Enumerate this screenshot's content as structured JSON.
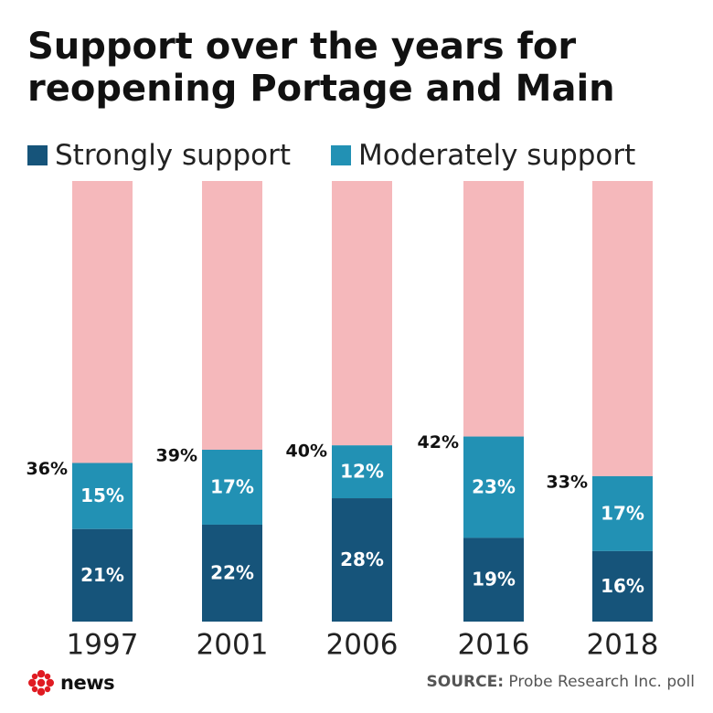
{
  "colors": {
    "strongly": "#16547a",
    "moderately": "#2291b4",
    "remainder": "#f5b8bb",
    "brand_red": "#e01b22"
  },
  "chart_data": {
    "type": "bar",
    "stacked": true,
    "title": "Support over the years for reopening Portage and Main",
    "categories": [
      "1997",
      "2001",
      "2006",
      "2016",
      "2018"
    ],
    "series": [
      {
        "name": "Strongly support",
        "values": [
          21,
          22,
          28,
          19,
          16
        ],
        "color": "#16547a"
      },
      {
        "name": "Moderately support",
        "values": [
          15,
          17,
          12,
          23,
          17
        ],
        "color": "#2291b4"
      }
    ],
    "totals": [
      36,
      39,
      40,
      42,
      33
    ],
    "value_format": "percent",
    "ylim": [
      0,
      100
    ],
    "legend": "top-left",
    "grid": false
  },
  "footer": {
    "logo_text": "news",
    "source_label": "SOURCE:",
    "source_text": "Probe Research Inc. poll"
  }
}
